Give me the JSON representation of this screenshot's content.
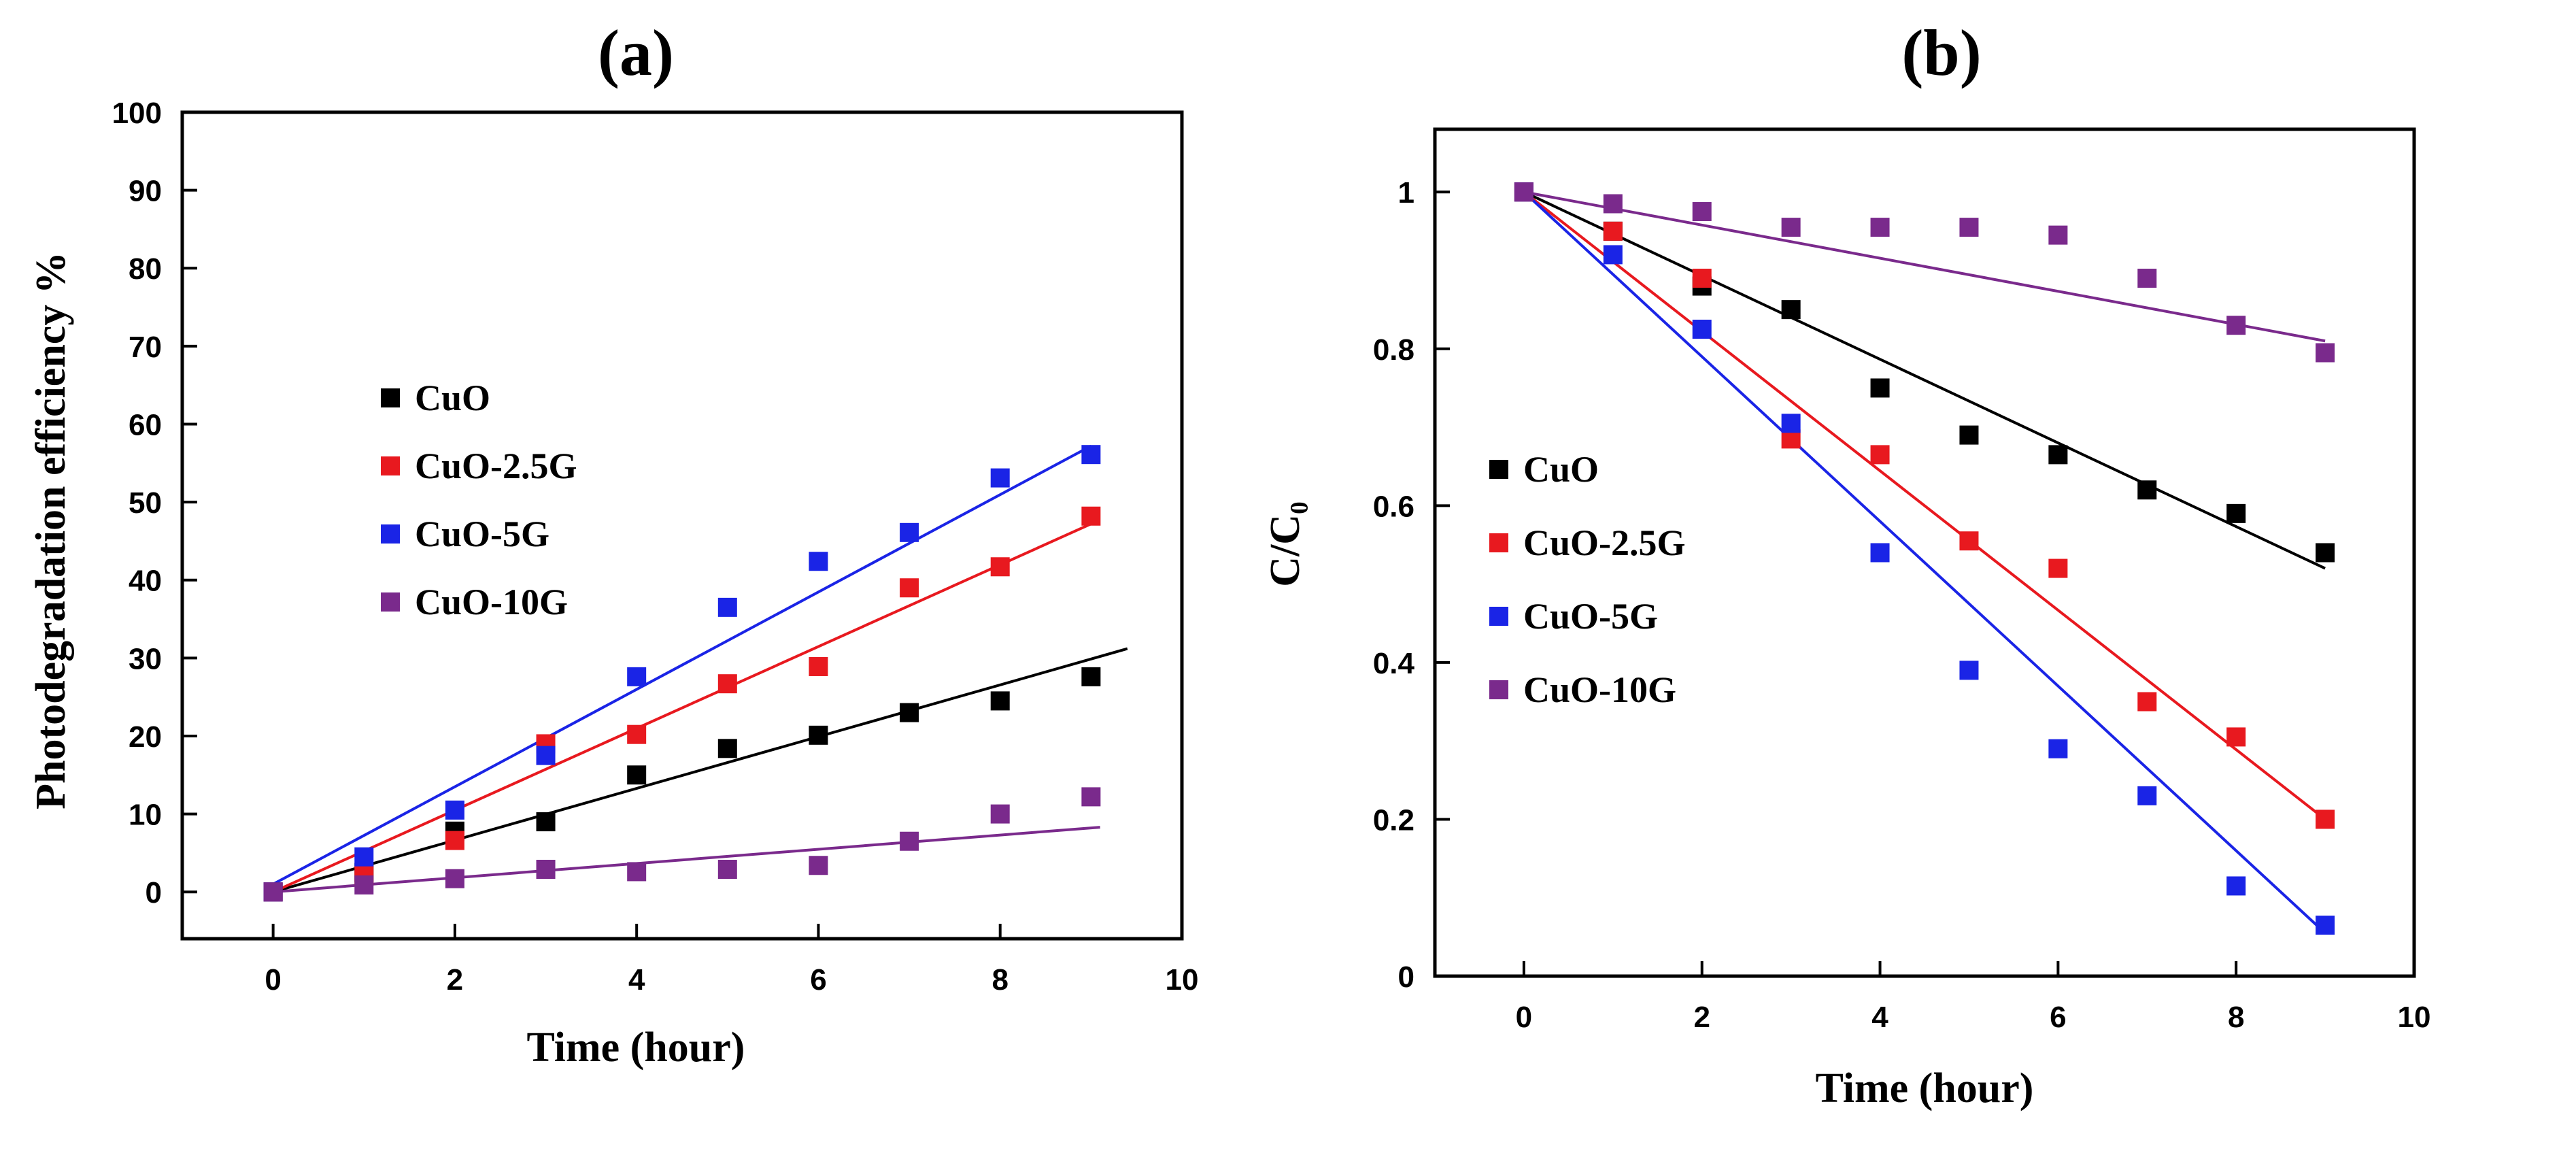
{
  "chart_data": [
    {
      "type": "scatter",
      "panel_label": "(a)",
      "title": "",
      "xlabel": "Time (hour)",
      "ylabel": "Photodegradation efficiency %",
      "xlim": [
        -1,
        10
      ],
      "ylim": [
        -6,
        100
      ],
      "xticks": [
        0,
        2,
        4,
        6,
        8,
        10
      ],
      "yticks": [
        0,
        10,
        20,
        30,
        40,
        50,
        60,
        70,
        80,
        90,
        100
      ],
      "legend_position": "center-left",
      "x": [
        0,
        1,
        2,
        3,
        4,
        5,
        6,
        7,
        8,
        9
      ],
      "series": [
        {
          "name": "CuO",
          "color": "#000000",
          "values": [
            0,
            2.5,
            7.8,
            9,
            15,
            18.4,
            20.1,
            23,
            24.5,
            27.6
          ],
          "fit": [
            [
              0,
              0
            ],
            [
              9.4,
              31.2
            ]
          ]
        },
        {
          "name": "CuO-2.5G",
          "color": "#e8191f",
          "values": [
            0,
            2.1,
            6.6,
            19,
            20.2,
            26.7,
            28.9,
            39,
            41.7,
            48.2
          ],
          "fit": [
            [
              0,
              0
            ],
            [
              9,
              47.2
            ]
          ]
        },
        {
          "name": "CuO-5G",
          "color": "#1a24e6",
          "values": [
            0,
            4.5,
            10.5,
            17.5,
            27.6,
            36.5,
            42.4,
            46.1,
            53.1,
            56.1
          ],
          "fit": [
            [
              0,
              1
            ],
            [
              9,
              57.2
            ]
          ]
        },
        {
          "name": "CuO-10G",
          "color": "#7a2a8c",
          "values": [
            0,
            0.9,
            1.7,
            2.9,
            2.6,
            2.9,
            3.4,
            6.5,
            10,
            12.2
          ],
          "fit": [
            [
              0,
              0
            ],
            [
              9.1,
              8.3
            ]
          ]
        }
      ]
    },
    {
      "type": "scatter",
      "panel_label": "(b)",
      "title": "",
      "xlabel": "Time (hour)",
      "ylabel": "C/C₀",
      "xlim": [
        -1,
        10
      ],
      "ylim": [
        0,
        1.08
      ],
      "xticks": [
        0,
        2,
        4,
        6,
        8,
        10
      ],
      "yticks": [
        0,
        0.2,
        0.4,
        0.6,
        0.8,
        1
      ],
      "ytick_labels": [
        "0",
        "0.2",
        "0.4",
        "0.6",
        "0.8",
        "1"
      ],
      "legend_position": "center-left",
      "x": [
        0,
        1,
        2,
        3,
        4,
        5,
        6,
        7,
        8,
        9
      ],
      "series": [
        {
          "name": "CuO",
          "color": "#000000",
          "values": [
            1,
            0.95,
            0.88,
            0.85,
            0.75,
            0.69,
            0.665,
            0.62,
            0.59,
            0.54
          ],
          "fit": [
            [
              0,
              1
            ],
            [
              9,
              0.52
            ]
          ]
        },
        {
          "name": "CuO-2.5G",
          "color": "#e8191f",
          "values": [
            1,
            0.95,
            0.89,
            0.685,
            0.665,
            0.555,
            0.52,
            0.35,
            0.305,
            0.2
          ],
          "fit": [
            [
              0,
              1
            ],
            [
              9,
              0.2
            ]
          ]
        },
        {
          "name": "CuO-5G",
          "color": "#1a24e6",
          "values": [
            1,
            0.92,
            0.825,
            0.705,
            0.54,
            0.39,
            0.29,
            0.23,
            0.115,
            0.065
          ],
          "fit": [
            [
              0,
              1
            ],
            [
              9,
              0.055
            ]
          ]
        },
        {
          "name": "CuO-10G",
          "color": "#7a2a8c",
          "values": [
            1,
            0.985,
            0.975,
            0.955,
            0.955,
            0.955,
            0.945,
            0.89,
            0.83,
            0.795
          ],
          "fit": [
            [
              0,
              1
            ],
            [
              9,
              0.81
            ]
          ]
        }
      ]
    }
  ]
}
